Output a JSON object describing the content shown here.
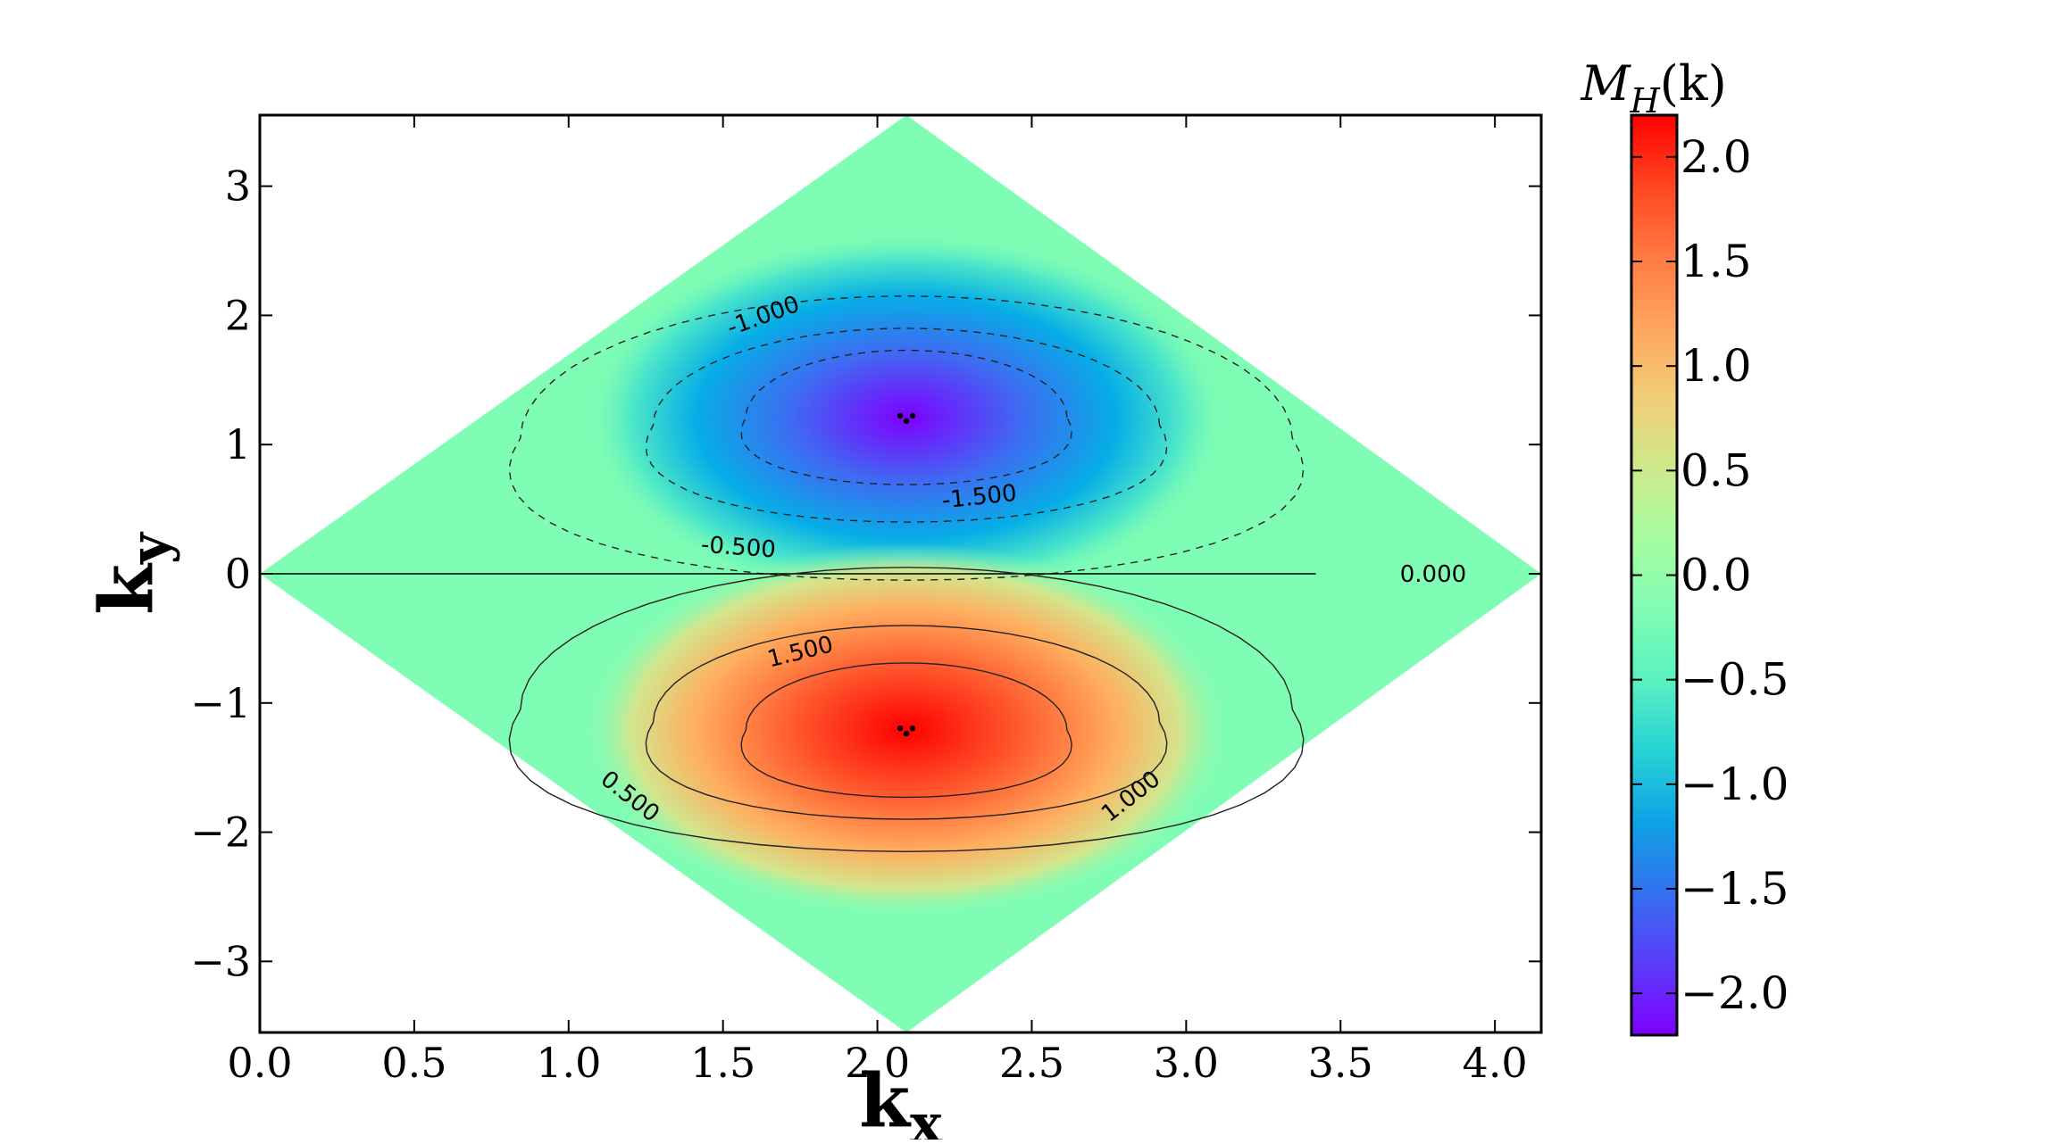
{
  "chart_data": {
    "type": "heatmap",
    "title": "",
    "xlabel": "k",
    "xlabel_sub": "x",
    "ylabel": "k",
    "ylabel_sub": "y",
    "xlim": [
      0.0,
      4.15
    ],
    "ylim": [
      -3.55,
      3.55
    ],
    "x_ticks": [
      "0.0",
      "0.5",
      "1.0",
      "1.5",
      "2.0",
      "2.5",
      "3.0",
      "3.5",
      "4.0"
    ],
    "x_tick_values": [
      0.0,
      0.5,
      1.0,
      1.5,
      2.0,
      2.5,
      3.0,
      3.5,
      4.0
    ],
    "y_ticks": [
      "3",
      "2",
      "1",
      "0",
      "−1",
      "−2",
      "−3"
    ],
    "y_tick_values": [
      3,
      2,
      1,
      0,
      -1,
      -2,
      -3
    ],
    "colorbar": {
      "title": "M",
      "title_sub": "H",
      "title_arg": "(k)",
      "range": [
        -2.2,
        2.2
      ],
      "colormap": "rainbow",
      "ticks": [
        "2.0",
        "1.5",
        "1.0",
        "0.5",
        "0.0",
        "−0.5",
        "−1.0",
        "−1.5",
        "−2.0"
      ],
      "tick_values": [
        2.0,
        1.5,
        1.0,
        0.5,
        0.0,
        -0.5,
        -1.0,
        -1.5,
        -2.0
      ]
    },
    "domain_shape": "diamond",
    "domain_vertices": [
      [
        0.0,
        0.0
      ],
      [
        2.094,
        3.55
      ],
      [
        4.15,
        0.0
      ],
      [
        2.094,
        -3.55
      ]
    ],
    "extrema": [
      {
        "x": 2.094,
        "y": 1.21,
        "value": -2.2
      },
      {
        "x": 2.094,
        "y": -1.21,
        "value": 2.2
      }
    ],
    "contour_levels": [
      -1.5,
      -1.0,
      -0.5,
      0.0,
      0.5,
      1.0,
      1.5
    ],
    "contour_labels": [
      {
        "text": "-1.000",
        "x": 1.63,
        "y": 2.0,
        "angle": -20
      },
      {
        "text": "-1.500",
        "x": 2.33,
        "y": 0.6,
        "angle": -6
      },
      {
        "text": "-0.500",
        "x": 1.55,
        "y": 0.21,
        "angle": 4
      },
      {
        "text": "0.000",
        "x": 3.8,
        "y": 0.0,
        "angle": 0
      },
      {
        "text": "1.500",
        "x": 1.75,
        "y": -0.6,
        "angle": -14
      },
      {
        "text": "0.500",
        "x": 1.2,
        "y": -1.72,
        "angle": 38
      },
      {
        "text": "1.000",
        "x": 2.82,
        "y": -1.72,
        "angle": -38
      }
    ]
  }
}
